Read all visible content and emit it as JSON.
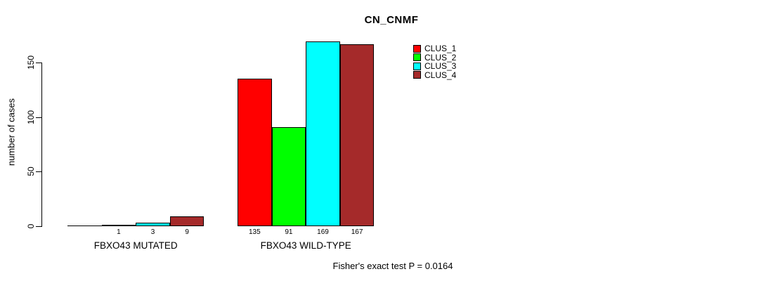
{
  "chart_data": {
    "type": "bar",
    "title": "CN_CNMF",
    "ylabel": "number of cases",
    "xlabel": "",
    "categories": [
      "FBXO43 MUTATED",
      "FBXO43 WILD-TYPE"
    ],
    "series": [
      {
        "name": "CLUS_1",
        "color": "#ff0000",
        "values": [
          0,
          135
        ],
        "bar_labels": [
          "",
          "135"
        ]
      },
      {
        "name": "CLUS_2",
        "color": "#00ff00",
        "values": [
          1,
          91
        ],
        "bar_labels": [
          "1",
          "91"
        ]
      },
      {
        "name": "CLUS_3",
        "color": "#00ffff",
        "values": [
          3,
          169
        ],
        "bar_labels": [
          "3",
          "169"
        ]
      },
      {
        "name": "CLUS_4",
        "color": "#a52a2a",
        "values": [
          9,
          167
        ],
        "bar_labels": [
          "9",
          "167"
        ]
      }
    ],
    "yticks": [
      0,
      50,
      100,
      150
    ],
    "ylim": [
      0,
      175
    ],
    "grid": false,
    "legend_position": "top-right",
    "legend_labels": [
      "CLUS_1",
      "CLUS_2",
      "CLUS_3",
      "CLUS_4"
    ],
    "bar_border_color": "#000000",
    "annotation": "Fisher's exact test P = 0.0164"
  }
}
